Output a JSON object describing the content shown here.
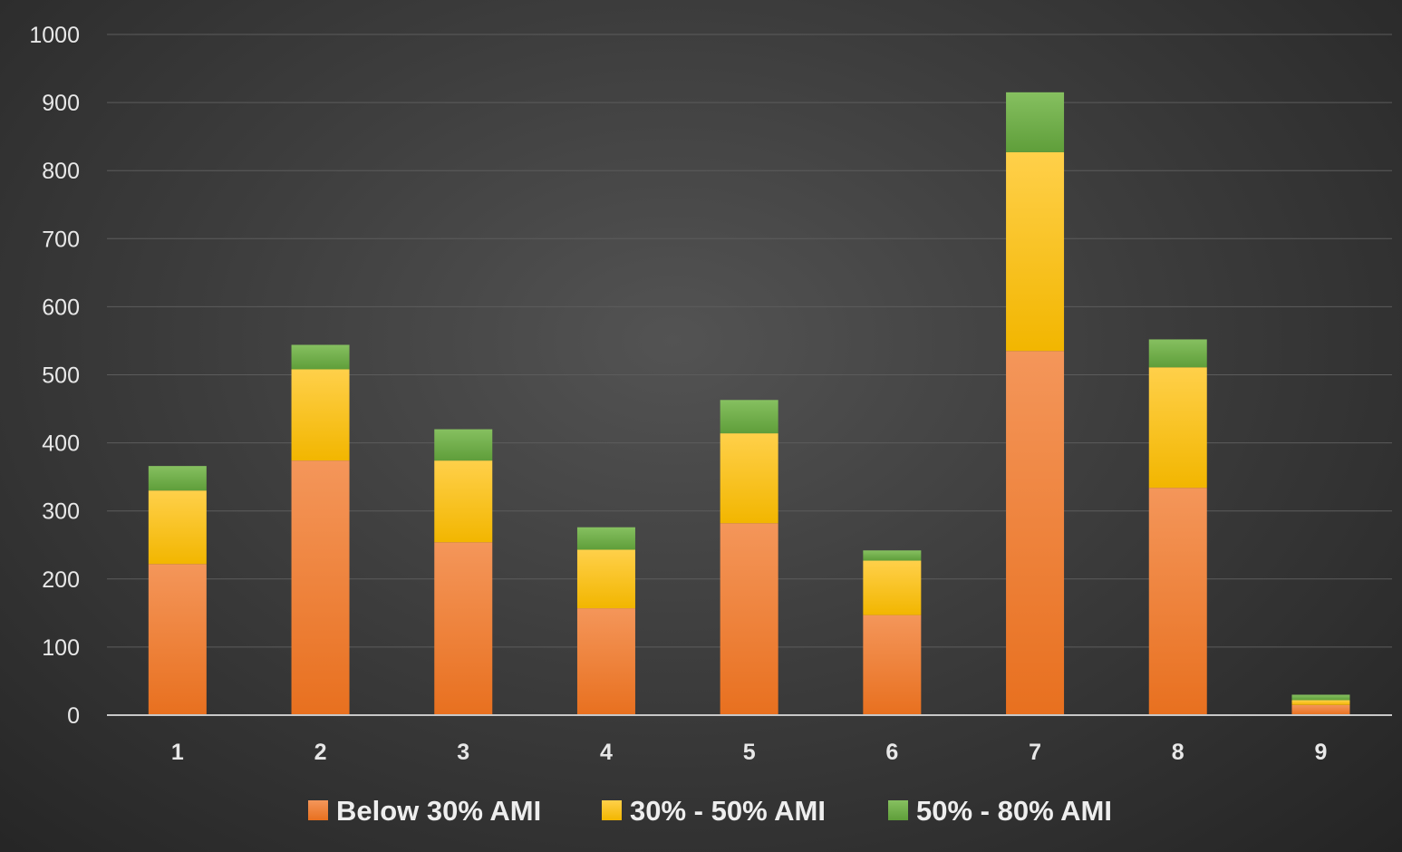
{
  "chart_data": {
    "type": "bar",
    "stacked": true,
    "title": "",
    "xlabel": "",
    "ylabel": "",
    "categories": [
      "1",
      "2",
      "3",
      "4",
      "5",
      "6",
      "7",
      "8",
      "9"
    ],
    "series": [
      {
        "name": "Below 30% AMI",
        "values": [
          222,
          374,
          254,
          157,
          282,
          147,
          535,
          334,
          15
        ],
        "color": "#ed7d31"
      },
      {
        "name": "30% - 50% AMI",
        "values": [
          108,
          134,
          120,
          86,
          132,
          80,
          292,
          177,
          7
        ],
        "color": "#ffc000"
      },
      {
        "name": "50% - 80% AMI",
        "values": [
          36,
          36,
          46,
          33,
          49,
          15,
          88,
          41,
          8
        ],
        "color": "#70ad47"
      }
    ],
    "ylim": [
      0,
      1000
    ],
    "yticks": [
      0,
      100,
      200,
      300,
      400,
      500,
      600,
      700,
      800,
      900,
      1000
    ],
    "grid": true,
    "legend_position": "bottom"
  }
}
